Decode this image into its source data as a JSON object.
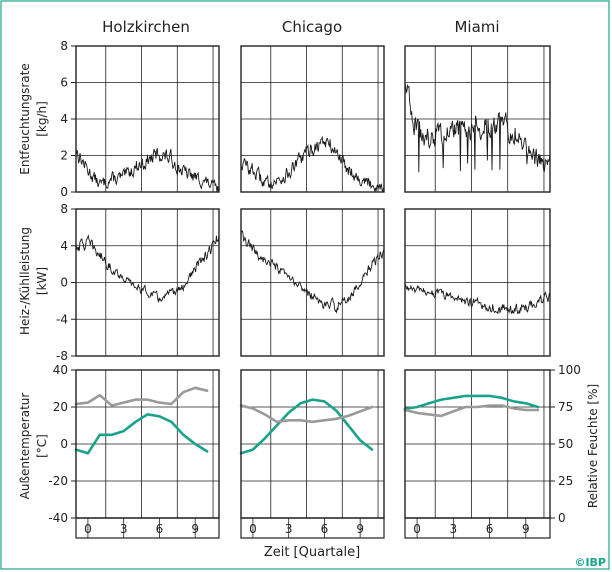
{
  "figure": {
    "columns": [
      "Holzkirchen",
      "Chicago",
      "Miami"
    ],
    "x_axis_label": "Zeit [Quartale]",
    "x_ticks": [
      "0",
      "3",
      "6",
      "9"
    ],
    "credit": "©IBP",
    "colors": {
      "frame": "#1aa38a",
      "grid": "#222222",
      "series_black": "#1a1a1a",
      "temp": "#1aa38a",
      "humidity": "#9a9a9a"
    }
  },
  "chart_data": [
    {
      "type": "line",
      "row": "dehumidification",
      "title": "",
      "ylabel": "Entfeuchtungsrate [kg/h]",
      "ylim": [
        0,
        8
      ],
      "yticks": [
        "0",
        "2",
        "4",
        "6",
        "8"
      ],
      "xlim": [
        -1,
        11
      ],
      "grid": true,
      "series": [
        {
          "column": "Holzkirchen",
          "x": [
            -1,
            0,
            1,
            2,
            3,
            4,
            5,
            6,
            7,
            8,
            9,
            10,
            11
          ],
          "y": [
            2.3,
            1.2,
            0.4,
            0.7,
            0.8,
            1.4,
            1.7,
            2.1,
            1.8,
            1.1,
            0.8,
            0.5,
            0.1
          ]
        },
        {
          "column": "Chicago",
          "x": [
            -1,
            0,
            1,
            2,
            3,
            4,
            5,
            6,
            7,
            8,
            9,
            10,
            11
          ],
          "y": [
            1.6,
            1.2,
            0.5,
            0.6,
            1.0,
            1.8,
            2.4,
            2.8,
            2.2,
            1.3,
            0.7,
            0.4,
            0.3
          ]
        },
        {
          "column": "Miami",
          "x": [
            -1,
            0,
            1,
            2,
            3,
            4,
            5,
            6,
            7,
            8,
            9,
            10,
            11
          ],
          "y": [
            6.0,
            3.3,
            3.0,
            3.2,
            3.3,
            3.4,
            3.5,
            3.6,
            3.6,
            3.4,
            2.5,
            1.8,
            1.6
          ]
        }
      ]
    },
    {
      "type": "line",
      "row": "heating_cooling",
      "title": "",
      "ylabel": "Heiz-/Kühlleistung [kW]",
      "ylim": [
        -8,
        8
      ],
      "yticks": [
        "-8",
        "-4",
        "0",
        "4",
        "8"
      ],
      "xlim": [
        -1,
        11
      ],
      "grid": true,
      "series": [
        {
          "column": "Holzkirchen",
          "x": [
            -1,
            0,
            1,
            2,
            3,
            4,
            5,
            6,
            7,
            8,
            9,
            10,
            11
          ],
          "y": [
            4.0,
            4.3,
            3.0,
            1.5,
            0.5,
            -0.5,
            -1.0,
            -1.8,
            -1.2,
            -0.5,
            1.5,
            3.0,
            5.0
          ]
        },
        {
          "column": "Chicago",
          "x": [
            -1,
            0,
            1,
            2,
            3,
            4,
            5,
            6,
            7,
            8,
            9,
            10,
            11
          ],
          "y": [
            5.0,
            3.5,
            2.5,
            1.5,
            0.5,
            -0.5,
            -1.5,
            -2.5,
            -2.5,
            -1.8,
            0.0,
            2.0,
            3.5
          ]
        },
        {
          "column": "Miami",
          "x": [
            -1,
            0,
            1,
            2,
            3,
            4,
            5,
            6,
            7,
            8,
            9,
            10,
            11
          ],
          "y": [
            -0.5,
            -0.9,
            -1.0,
            -1.3,
            -1.6,
            -2.0,
            -2.3,
            -2.6,
            -2.8,
            -3.0,
            -2.8,
            -2.0,
            -1.6
          ]
        }
      ]
    },
    {
      "type": "line",
      "row": "climate",
      "title": "",
      "ylabel": "Außentemperatur [°C]",
      "y2label": "Relative Feuchte [%]",
      "ylim": [
        -40,
        40
      ],
      "yticks": [
        "-40",
        "-20",
        "0",
        "20",
        "40"
      ],
      "y2lim": [
        0,
        100
      ],
      "y2ticks": [
        "0",
        "25",
        "50",
        "75",
        "100"
      ],
      "xlim": [
        -1,
        11
      ],
      "grid": true,
      "series": [
        {
          "column": "Holzkirchen",
          "name": "",
          "axis": "left",
          "color": "temp",
          "x": [
            -1,
            0,
            1,
            2,
            3,
            4,
            5,
            6,
            7,
            8,
            9,
            10
          ],
          "y": [
            -3,
            -5,
            5,
            5,
            7,
            12,
            16,
            15,
            12,
            5,
            0,
            -4
          ]
        },
        {
          "column": "Holzkirchen",
          "name": "",
          "axis": "right",
          "color": "humidity",
          "x": [
            -1,
            0,
            1,
            2,
            3,
            4,
            5,
            6,
            7,
            8,
            9,
            10
          ],
          "y": [
            77,
            78,
            83,
            76,
            78,
            80,
            80,
            78,
            77,
            85,
            88,
            86
          ]
        },
        {
          "column": "Chicago",
          "name": "",
          "axis": "left",
          "color": "temp",
          "x": [
            -1,
            0,
            1,
            2,
            3,
            4,
            5,
            6,
            7,
            8,
            9,
            10
          ],
          "y": [
            -5,
            -3,
            3,
            10,
            17,
            22,
            24,
            23,
            18,
            10,
            2,
            -3
          ]
        },
        {
          "column": "Chicago",
          "name": "",
          "axis": "right",
          "color": "humidity",
          "x": [
            -1,
            0,
            1,
            2,
            3,
            4,
            5,
            6,
            7,
            8,
            9,
            10
          ],
          "y": [
            76,
            74,
            70,
            65,
            66,
            66,
            65,
            66,
            67,
            69,
            72,
            75
          ]
        },
        {
          "column": "Miami",
          "name": "",
          "axis": "left",
          "color": "temp",
          "x": [
            -1,
            0,
            1,
            2,
            3,
            4,
            5,
            6,
            7,
            8,
            9,
            10
          ],
          "y": [
            19,
            20,
            22,
            24,
            25,
            26,
            26,
            26,
            25,
            23,
            22,
            20
          ]
        },
        {
          "column": "Miami",
          "name": "",
          "axis": "right",
          "color": "humidity",
          "x": [
            -1,
            0,
            1,
            2,
            3,
            4,
            5,
            6,
            7,
            8,
            9,
            10
          ],
          "y": [
            73,
            71,
            70,
            69,
            72,
            75,
            75,
            76,
            76,
            74,
            73,
            73
          ]
        }
      ]
    }
  ]
}
